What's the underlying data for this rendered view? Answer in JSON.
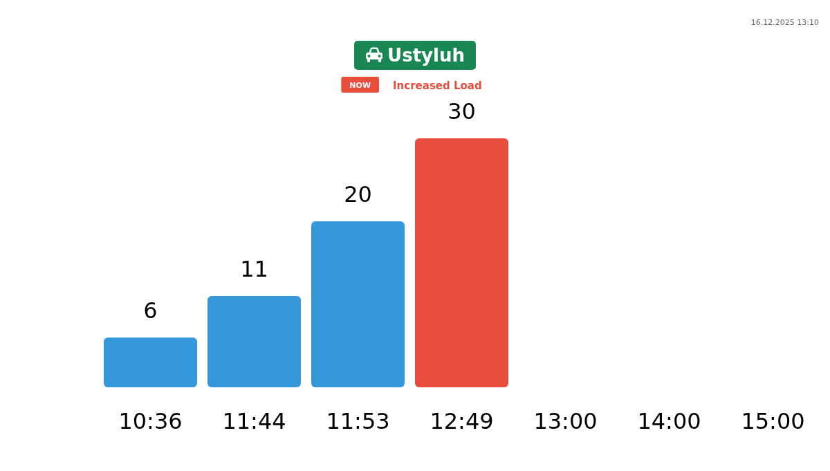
{
  "chart_data": {
    "type": "bar",
    "title": "Ustyluh",
    "subtitle": "Increased Load",
    "annotations": [
      "NOW",
      "16.12.2025 13:10"
    ],
    "categories": [
      "10:36",
      "11:44",
      "11:53",
      "12:49",
      "13:00",
      "14:00",
      "15:00"
    ],
    "values": [
      6,
      11,
      20,
      30,
      null,
      null,
      null
    ],
    "colors": [
      "#3498db",
      "#3498db",
      "#3498db",
      "#e74c3c",
      null,
      null,
      null
    ],
    "ylim": [
      0,
      30
    ],
    "data_labels": true,
    "tick_labels": "x"
  }
}
